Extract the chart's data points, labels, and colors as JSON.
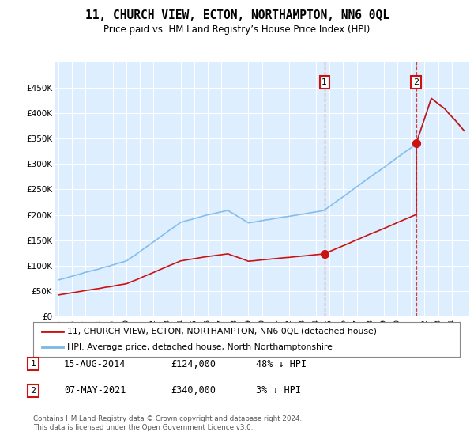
{
  "title": "11, CHURCH VIEW, ECTON, NORTHAMPTON, NN6 0QL",
  "subtitle": "Price paid vs. HM Land Registry’s House Price Index (HPI)",
  "legend_line1": "11, CHURCH VIEW, ECTON, NORTHAMPTON, NN6 0QL (detached house)",
  "legend_line2": "HPI: Average price, detached house, North Northamptonshire",
  "footnote": "Contains HM Land Registry data © Crown copyright and database right 2024.\nThis data is licensed under the Open Government Licence v3.0.",
  "purchase1_date": "15-AUG-2014",
  "purchase1_price": 124000,
  "purchase1_pct": "48% ↓ HPI",
  "purchase2_date": "07-MAY-2021",
  "purchase2_price": 340000,
  "purchase2_pct": "3% ↓ HPI",
  "purchase1_year": 2014.622,
  "purchase2_year": 2021.367,
  "hpi_color": "#7ab8e8",
  "price_color": "#cc1111",
  "plot_bg_color": "#ddeeff",
  "grid_color": "#ffffff",
  "label1_box_color": "#cc1111",
  "ylim": [
    0,
    500000
  ],
  "xlim_left": 1994.7,
  "xlim_right": 2025.3
}
